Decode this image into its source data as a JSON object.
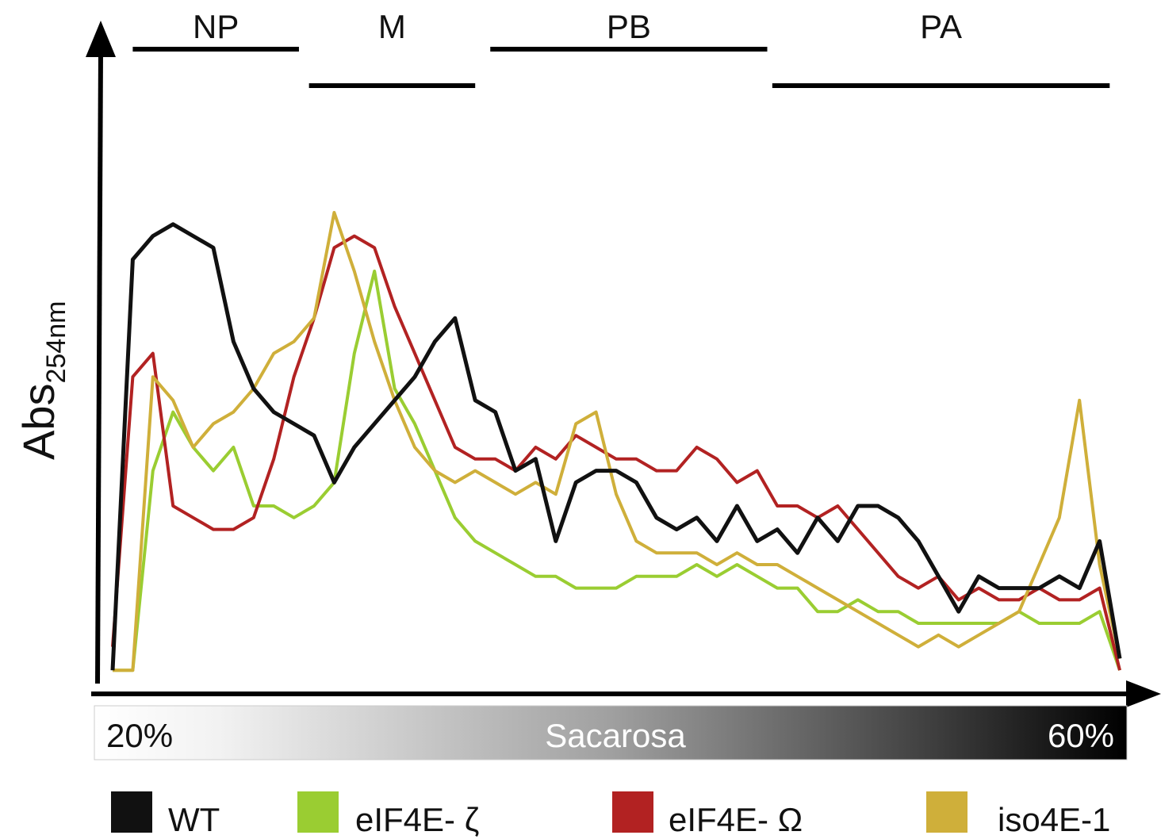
{
  "chart_data": {
    "type": "line",
    "title": "",
    "ylabel": "Abs",
    "ylabel_sub": "254nm",
    "xlabel": "Sacarosa",
    "x_start_label": "20%",
    "x_end_label": "60%",
    "x": [
      0,
      2,
      4,
      6,
      8,
      10,
      12,
      14,
      16,
      18,
      20,
      22,
      24,
      26,
      28,
      30,
      32,
      34,
      36,
      38,
      40,
      42,
      44,
      46,
      48,
      50,
      52,
      54,
      56,
      58,
      60,
      62,
      64,
      66,
      68,
      70,
      72,
      74,
      76,
      78,
      80,
      82,
      84,
      86,
      88,
      90,
      92,
      94,
      96,
      98,
      100
    ],
    "xlim": [
      0,
      100
    ],
    "ylim": [
      0,
      100
    ],
    "grid": false,
    "legend_position": "bottom",
    "regions": [
      {
        "label": "NP",
        "start": 2,
        "end": 18.5,
        "row": 1
      },
      {
        "label": "M",
        "start": 19.5,
        "end": 36,
        "row": 2
      },
      {
        "label": "PB",
        "start": 37.5,
        "end": 65,
        "row": 1
      },
      {
        "label": "PA",
        "start": 65.5,
        "end": 99,
        "row": 2
      }
    ],
    "series": [
      {
        "name": "WT",
        "color": "#111111",
        "values": [
          2,
          72,
          76,
          78,
          76,
          74,
          58,
          50,
          46,
          44,
          42,
          34,
          40,
          44,
          48,
          52,
          58,
          62,
          48,
          46,
          36,
          38,
          24,
          34,
          36,
          36,
          34,
          28,
          26,
          28,
          24,
          30,
          24,
          26,
          22,
          28,
          24,
          30,
          30,
          28,
          24,
          18,
          12,
          18,
          16,
          16,
          16,
          18,
          16,
          24,
          4
        ]
      },
      {
        "name": "eIF4E- ζ",
        "color": "#9ACD32",
        "values": [
          2,
          2,
          36,
          46,
          40,
          36,
          40,
          30,
          30,
          28,
          30,
          34,
          56,
          70,
          50,
          44,
          36,
          28,
          24,
          22,
          20,
          18,
          18,
          16,
          16,
          16,
          18,
          18,
          18,
          20,
          18,
          20,
          18,
          16,
          16,
          12,
          12,
          14,
          12,
          12,
          10,
          10,
          10,
          10,
          10,
          12,
          10,
          10,
          10,
          12,
          2
        ]
      },
      {
        "name": "eIF4E- Ω",
        "color": "#B22222",
        "values": [
          6,
          52,
          56,
          30,
          28,
          26,
          26,
          28,
          38,
          52,
          62,
          74,
          76,
          74,
          64,
          56,
          48,
          40,
          38,
          38,
          36,
          40,
          38,
          42,
          40,
          38,
          38,
          36,
          36,
          40,
          38,
          34,
          36,
          30,
          30,
          28,
          30,
          26,
          22,
          18,
          16,
          18,
          14,
          16,
          14,
          14,
          16,
          14,
          14,
          16,
          2
        ]
      },
      {
        "name": "iso4E-1",
        "color": "#CFAF3A",
        "values": [
          2,
          2,
          52,
          48,
          40,
          44,
          46,
          50,
          56,
          58,
          62,
          80,
          70,
          58,
          48,
          40,
          36,
          34,
          36,
          34,
          32,
          34,
          32,
          44,
          46,
          32,
          24,
          22,
          22,
          22,
          20,
          22,
          20,
          20,
          18,
          16,
          14,
          12,
          10,
          8,
          6,
          8,
          6,
          8,
          10,
          12,
          20,
          28,
          48,
          20,
          4
        ]
      }
    ]
  }
}
